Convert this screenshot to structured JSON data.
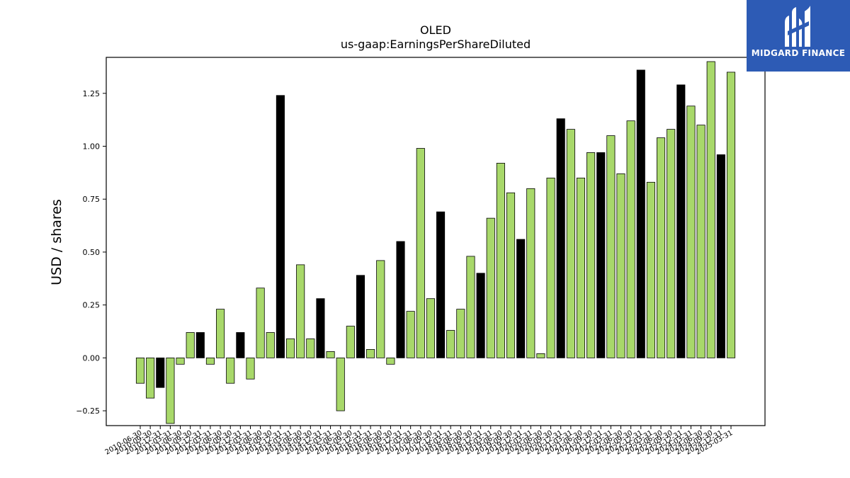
{
  "chart_data": {
    "type": "bar",
    "title": "OLED",
    "subtitle": "us-gaap:EarningsPerShareDiluted",
    "ylabel": "USD / shares",
    "xlabel": "",
    "ylim": [
      -0.32,
      1.42
    ],
    "yticks": [
      -0.25,
      0.0,
      0.25,
      0.5,
      0.75,
      1.0,
      1.25
    ],
    "ytick_labels": [
      "−0.25",
      "0.00",
      "0.25",
      "0.50",
      "0.75",
      "1.00",
      "1.25"
    ],
    "grid": false,
    "colors": {
      "quarterly": "#a8d86a",
      "annual": "#000000"
    },
    "bars": [
      {
        "label": "2010-06-30",
        "value": -0.12,
        "kind": "quarterly"
      },
      {
        "label": "2010-09-30",
        "value": -0.19,
        "kind": "quarterly"
      },
      {
        "label": "2010-12-31",
        "value": -0.14,
        "kind": "annual"
      },
      {
        "label": "2011-03-31",
        "value": -0.31,
        "kind": "quarterly"
      },
      {
        "label": "2011-06-30",
        "value": -0.03,
        "kind": "quarterly"
      },
      {
        "label": "2011-09-30",
        "value": 0.12,
        "kind": "quarterly"
      },
      {
        "label": "2011-12-31",
        "value": 0.12,
        "kind": "annual"
      },
      {
        "label": "2012-03-31",
        "value": -0.03,
        "kind": "quarterly"
      },
      {
        "label": "2012-06-30",
        "value": 0.23,
        "kind": "quarterly"
      },
      {
        "label": "2012-09-30",
        "value": -0.12,
        "kind": "quarterly"
      },
      {
        "label": "2012-12-31",
        "value": 0.12,
        "kind": "annual"
      },
      {
        "label": "2013-03-31",
        "value": -0.1,
        "kind": "quarterly"
      },
      {
        "label": "2013-06-30",
        "value": 0.33,
        "kind": "quarterly"
      },
      {
        "label": "2013-09-30",
        "value": 0.12,
        "kind": "quarterly"
      },
      {
        "label": "2013-12-31",
        "value": 1.24,
        "kind": "annual"
      },
      {
        "label": "2014-03-31",
        "value": 0.09,
        "kind": "quarterly"
      },
      {
        "label": "2014-06-30",
        "value": 0.44,
        "kind": "quarterly"
      },
      {
        "label": "2014-09-30",
        "value": 0.09,
        "kind": "quarterly"
      },
      {
        "label": "2014-12-31",
        "value": 0.28,
        "kind": "annual"
      },
      {
        "label": "2015-03-31",
        "value": 0.03,
        "kind": "quarterly"
      },
      {
        "label": "2015-06-30",
        "value": -0.25,
        "kind": "quarterly"
      },
      {
        "label": "2015-09-30",
        "value": 0.15,
        "kind": "quarterly"
      },
      {
        "label": "2015-12-31",
        "value": 0.39,
        "kind": "annual"
      },
      {
        "label": "2016-03-31",
        "value": 0.04,
        "kind": "quarterly"
      },
      {
        "label": "2016-06-30",
        "value": 0.46,
        "kind": "quarterly"
      },
      {
        "label": "2016-09-30",
        "value": -0.03,
        "kind": "quarterly"
      },
      {
        "label": "2016-12-31",
        "value": 0.55,
        "kind": "annual"
      },
      {
        "label": "2017-03-31",
        "value": 0.22,
        "kind": "quarterly"
      },
      {
        "label": "2017-06-30",
        "value": 0.99,
        "kind": "quarterly"
      },
      {
        "label": "2017-09-30",
        "value": 0.28,
        "kind": "quarterly"
      },
      {
        "label": "2017-12-31",
        "value": 0.69,
        "kind": "annual"
      },
      {
        "label": "2018-03-31",
        "value": 0.13,
        "kind": "quarterly"
      },
      {
        "label": "2018-06-30",
        "value": 0.23,
        "kind": "quarterly"
      },
      {
        "label": "2018-09-30",
        "value": 0.48,
        "kind": "quarterly"
      },
      {
        "label": "2018-12-31",
        "value": 0.4,
        "kind": "annual"
      },
      {
        "label": "2019-03-31",
        "value": 0.66,
        "kind": "quarterly"
      },
      {
        "label": "2019-06-30",
        "value": 0.92,
        "kind": "quarterly"
      },
      {
        "label": "2019-09-30",
        "value": 0.78,
        "kind": "quarterly"
      },
      {
        "label": "2019-12-31",
        "value": 0.56,
        "kind": "annual"
      },
      {
        "label": "2020-03-31",
        "value": 0.8,
        "kind": "quarterly"
      },
      {
        "label": "2020-06-30",
        "value": 0.02,
        "kind": "quarterly"
      },
      {
        "label": "2020-09-30",
        "value": 0.85,
        "kind": "quarterly"
      },
      {
        "label": "2020-12-31",
        "value": 1.13,
        "kind": "annual"
      },
      {
        "label": "2021-03-31",
        "value": 1.08,
        "kind": "quarterly"
      },
      {
        "label": "2021-06-30",
        "value": 0.85,
        "kind": "quarterly"
      },
      {
        "label": "2021-09-30",
        "value": 0.97,
        "kind": "quarterly"
      },
      {
        "label": "2021-12-31",
        "value": 0.97,
        "kind": "annual"
      },
      {
        "label": "2022-03-31",
        "value": 1.05,
        "kind": "quarterly"
      },
      {
        "label": "2022-06-30",
        "value": 0.87,
        "kind": "quarterly"
      },
      {
        "label": "2022-09-30",
        "value": 1.12,
        "kind": "quarterly"
      },
      {
        "label": "2022-12-31",
        "value": 1.36,
        "kind": "annual"
      },
      {
        "label": "2023-03-31",
        "value": 0.83,
        "kind": "quarterly"
      },
      {
        "label": "2023-06-30",
        "value": 1.04,
        "kind": "quarterly"
      },
      {
        "label": "2023-09-30",
        "value": 1.08,
        "kind": "quarterly"
      },
      {
        "label": "2023-12-31",
        "value": 1.29,
        "kind": "annual"
      },
      {
        "label": "2024-03-31",
        "value": 1.19,
        "kind": "quarterly"
      },
      {
        "label": "2024-06-30",
        "value": 1.1,
        "kind": "quarterly"
      },
      {
        "label": "2024-09-30",
        "value": 1.4,
        "kind": "quarterly"
      },
      {
        "label": "2024-12-31",
        "value": 0.96,
        "kind": "annual"
      },
      {
        "label": "2025-03-31",
        "value": 1.35,
        "kind": "quarterly"
      }
    ]
  },
  "logo": {
    "name": "MIDGARD FINANCE",
    "icon": "midgard-m-logo-icon"
  }
}
